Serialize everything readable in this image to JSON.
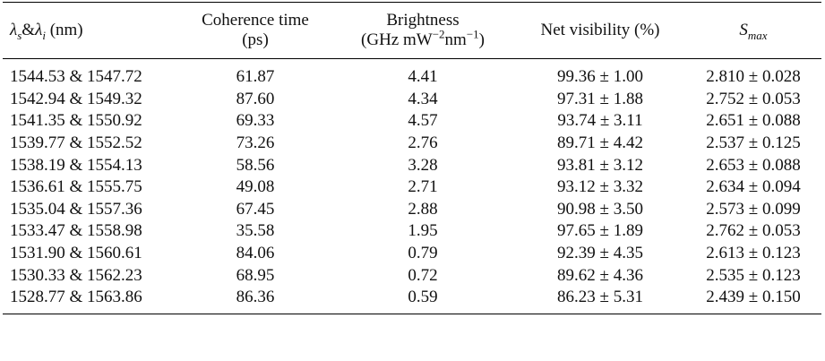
{
  "table": {
    "header": [
      [
        [
          {
            "text": "λ",
            "italic": true
          },
          {
            "text": "s",
            "italic": true,
            "pos": "sub"
          },
          "&",
          {
            "text": "λ",
            "italic": true
          },
          {
            "text": "i",
            "italic": true,
            "pos": "sub"
          },
          " (nm)"
        ]
      ],
      [
        [
          "Coherence time"
        ],
        [
          "(ps)"
        ]
      ],
      [
        [
          "Brightness"
        ],
        [
          "(GHz mW",
          {
            "text": "−2",
            "pos": "sup"
          },
          "nm",
          {
            "text": "−1",
            "pos": "sup"
          },
          ")"
        ]
      ],
      [
        [
          "Net visibility (%)"
        ]
      ],
      [
        [
          {
            "text": "S",
            "italic": true
          },
          {
            "text": "max",
            "italic": true,
            "pos": "sub"
          }
        ]
      ]
    ],
    "rows": [
      [
        "1544.53 & 1547.72",
        "61.87",
        "4.41",
        "99.36 ± 1.00",
        "2.810 ± 0.028"
      ],
      [
        "1542.94 & 1549.32",
        "87.60",
        "4.34",
        "97.31 ± 1.88",
        "2.752 ± 0.053"
      ],
      [
        "1541.35 & 1550.92",
        "69.33",
        "4.57",
        "93.74 ± 3.11",
        "2.651 ± 0.088"
      ],
      [
        "1539.77 & 1552.52",
        "73.26",
        "2.76",
        "89.71 ± 4.42",
        "2.537 ± 0.125"
      ],
      [
        "1538.19 & 1554.13",
        "58.56",
        "3.28",
        "93.81 ± 3.12",
        "2.653 ± 0.088"
      ],
      [
        "1536.61 & 1555.75",
        "49.08",
        "2.71",
        "93.12 ± 3.32",
        "2.634 ± 0.094"
      ],
      [
        "1535.04 & 1557.36",
        "67.45",
        "2.88",
        "90.98 ± 3.50",
        "2.573 ± 0.099"
      ],
      [
        "1533.47 & 1558.98",
        "35.58",
        "1.95",
        "97.65 ± 1.89",
        "2.762 ± 0.053"
      ],
      [
        "1531.90 & 1560.61",
        "84.06",
        "0.79",
        "92.39 ± 4.35",
        "2.613 ± 0.123"
      ],
      [
        "1530.33 & 1562.23",
        "68.95",
        "0.72",
        "89.62 ± 4.36",
        "2.535 ± 0.123"
      ],
      [
        "1528.77 & 1563.86",
        "86.36",
        "0.59",
        "86.23 ± 5.31",
        "2.439 ± 0.150"
      ]
    ]
  }
}
